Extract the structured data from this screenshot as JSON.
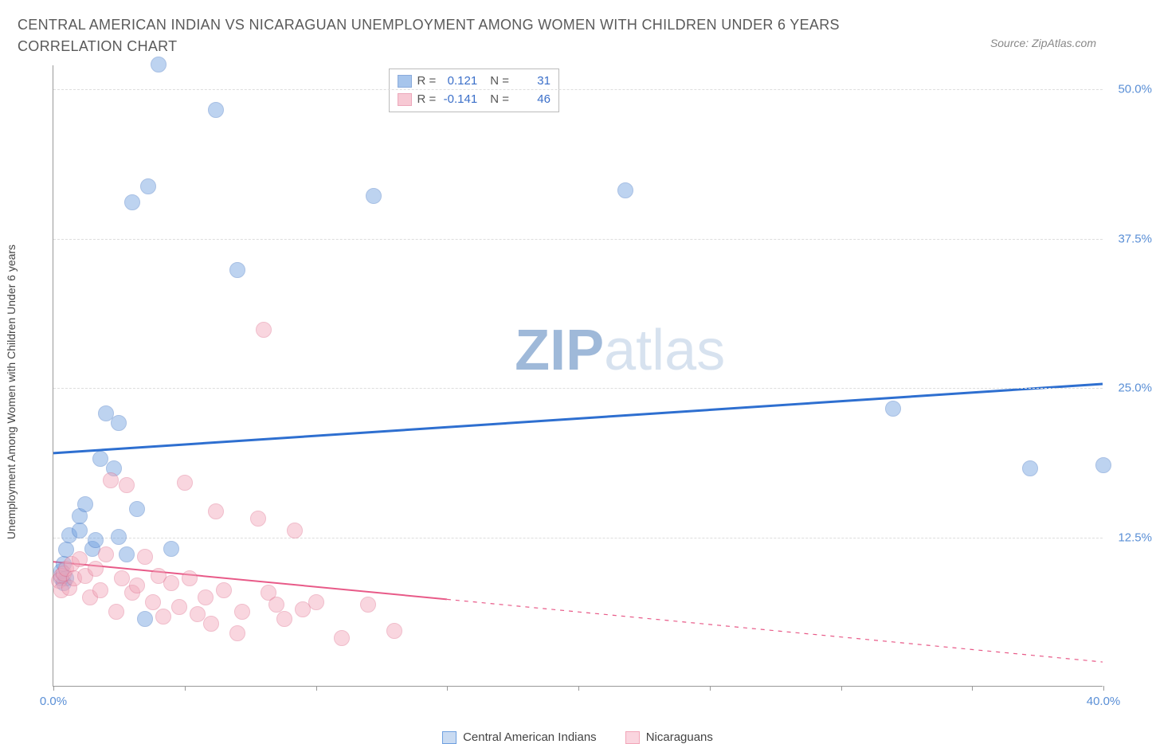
{
  "title": "CENTRAL AMERICAN INDIAN VS NICARAGUAN UNEMPLOYMENT AMONG WOMEN WITH CHILDREN UNDER 6 YEARS CORRELATION CHART",
  "source": "Source: ZipAtlas.com",
  "y_axis_label": "Unemployment Among Women with Children Under 6 years",
  "watermark": {
    "strong": "ZIP",
    "light": "atlas",
    "strong_color": "#9fb9d9",
    "light_color": "#d7e2ef"
  },
  "chart": {
    "type": "scatter",
    "background_color": "#ffffff",
    "grid_color": "#dddddd",
    "axis_color": "#999999",
    "tick_label_color": "#5a8fd6",
    "xlim": [
      0,
      40
    ],
    "ylim": [
      0,
      52
    ],
    "x_ticks": [
      0,
      5,
      10,
      15,
      20,
      25,
      30,
      35,
      40
    ],
    "x_tick_labels": {
      "0": "0.0%",
      "40": "40.0%"
    },
    "y_gridlines": [
      12.5,
      25,
      37.5,
      50
    ],
    "y_tick_labels": {
      "12.5": "12.5%",
      "25": "25.0%",
      "37.5": "37.5%",
      "50": "50.0%"
    },
    "marker_radius": 10,
    "marker_opacity": 0.45,
    "series": [
      {
        "name": "Central American Indians",
        "color": "#6ea0e0",
        "border": "#3f74c4",
        "trend_color": "#2e6fd0",
        "trend_width": 3,
        "trend_y_at_xmin": 19.5,
        "trend_y_at_xmax": 25.3,
        "trend_dash_after_x": null,
        "R": "0.121",
        "N": "31",
        "points": [
          [
            0.3,
            9.0
          ],
          [
            0.3,
            9.6
          ],
          [
            0.4,
            10.2
          ],
          [
            0.4,
            8.6
          ],
          [
            0.5,
            11.4
          ],
          [
            0.5,
            9.0
          ],
          [
            0.6,
            12.6
          ],
          [
            1.0,
            13.0
          ],
          [
            1.0,
            14.2
          ],
          [
            1.2,
            15.2
          ],
          [
            1.5,
            11.5
          ],
          [
            1.6,
            12.2
          ],
          [
            1.8,
            19.0
          ],
          [
            2.0,
            22.8
          ],
          [
            2.3,
            18.2
          ],
          [
            2.5,
            22.0
          ],
          [
            2.5,
            12.5
          ],
          [
            2.8,
            11.0
          ],
          [
            3.0,
            40.5
          ],
          [
            3.2,
            14.8
          ],
          [
            3.5,
            5.6
          ],
          [
            3.6,
            41.8
          ],
          [
            4.0,
            52.0
          ],
          [
            4.5,
            11.5
          ],
          [
            6.2,
            48.2
          ],
          [
            7.0,
            34.8
          ],
          [
            12.2,
            41.0
          ],
          [
            21.8,
            41.5
          ],
          [
            32.0,
            23.2
          ],
          [
            37.2,
            18.2
          ],
          [
            40.0,
            18.5
          ]
        ]
      },
      {
        "name": "Nicaraguans",
        "color": "#f2a6b9",
        "border": "#e06f8e",
        "trend_color": "#e85a88",
        "trend_width": 2,
        "trend_y_at_xmin": 10.4,
        "trend_y_at_xmax": 2.0,
        "trend_dash_after_x": 15,
        "R": "-0.141",
        "N": "46",
        "points": [
          [
            0.2,
            8.8
          ],
          [
            0.3,
            9.2
          ],
          [
            0.3,
            8.0
          ],
          [
            0.4,
            9.4
          ],
          [
            0.5,
            9.8
          ],
          [
            0.6,
            8.2
          ],
          [
            0.7,
            10.2
          ],
          [
            0.8,
            9.0
          ],
          [
            1.0,
            10.6
          ],
          [
            1.2,
            9.2
          ],
          [
            1.4,
            7.4
          ],
          [
            1.6,
            9.8
          ],
          [
            1.8,
            8.0
          ],
          [
            2.0,
            11.0
          ],
          [
            2.2,
            17.2
          ],
          [
            2.4,
            6.2
          ],
          [
            2.6,
            9.0
          ],
          [
            2.8,
            16.8
          ],
          [
            3.0,
            7.8
          ],
          [
            3.2,
            8.4
          ],
          [
            3.5,
            10.8
          ],
          [
            3.8,
            7.0
          ],
          [
            4.0,
            9.2
          ],
          [
            4.2,
            5.8
          ],
          [
            4.5,
            8.6
          ],
          [
            4.8,
            6.6
          ],
          [
            5.0,
            17.0
          ],
          [
            5.2,
            9.0
          ],
          [
            5.5,
            6.0
          ],
          [
            5.8,
            7.4
          ],
          [
            6.0,
            5.2
          ],
          [
            6.2,
            14.6
          ],
          [
            6.5,
            8.0
          ],
          [
            7.0,
            4.4
          ],
          [
            7.2,
            6.2
          ],
          [
            7.8,
            14.0
          ],
          [
            8.0,
            29.8
          ],
          [
            8.2,
            7.8
          ],
          [
            8.5,
            6.8
          ],
          [
            8.8,
            5.6
          ],
          [
            9.2,
            13.0
          ],
          [
            9.5,
            6.4
          ],
          [
            10.0,
            7.0
          ],
          [
            11.0,
            4.0
          ],
          [
            12.0,
            6.8
          ],
          [
            13.0,
            4.6
          ]
        ]
      }
    ]
  },
  "legend_bottom": [
    {
      "label": "Central American Indians",
      "fill": "#c9dbf2",
      "border": "#6ea0e0"
    },
    {
      "label": "Nicaraguans",
      "fill": "#fad5df",
      "border": "#f2a6b9"
    }
  ]
}
